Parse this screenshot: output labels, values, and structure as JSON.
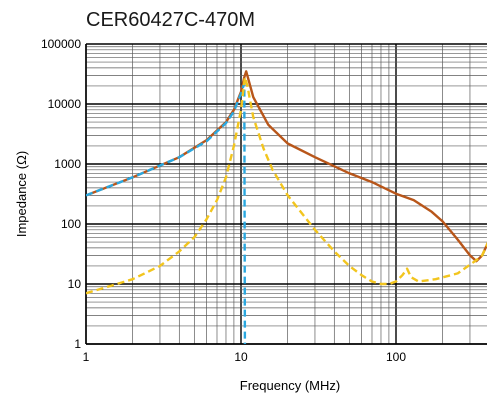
{
  "chart_data": {
    "type": "line",
    "title": "CER60427C-470M",
    "xlabel": "Frequency (MHz)",
    "ylabel": "Impedance (Ω)",
    "x_scale": "log",
    "y_scale": "log",
    "xlim": [
      1,
      400
    ],
    "ylim": [
      1,
      100000
    ],
    "x_ticks": [
      1,
      10,
      100
    ],
    "x_tick_labels": [
      "1",
      "10",
      "100"
    ],
    "y_ticks": [
      1,
      10,
      100,
      1000,
      10000,
      100000
    ],
    "y_tick_labels": [
      "1",
      "10",
      "100",
      "1000",
      "10000",
      "100000"
    ],
    "grid": true,
    "series": [
      {
        "color": "#b8561a",
        "style": "solid",
        "points": [
          [
            1,
            300
          ],
          [
            2,
            600
          ],
          [
            4,
            1300
          ],
          [
            6,
            2500
          ],
          [
            8,
            5000
          ],
          [
            9,
            8000
          ],
          [
            10,
            16000
          ],
          [
            10.5,
            28000
          ],
          [
            10.8,
            35000
          ],
          [
            11.2,
            25000
          ],
          [
            12,
            13000
          ],
          [
            15,
            4500
          ],
          [
            20,
            2200
          ],
          [
            30,
            1300
          ],
          [
            50,
            700
          ],
          [
            70,
            500
          ],
          [
            100,
            320
          ],
          [
            130,
            250
          ],
          [
            170,
            160
          ],
          [
            200,
            110
          ],
          [
            250,
            55
          ],
          [
            300,
            30
          ],
          [
            330,
            24
          ],
          [
            360,
            30
          ],
          [
            400,
            55
          ]
        ]
      },
      {
        "color": "#2aa8e0",
        "style": "dashed",
        "points": [
          [
            1,
            300
          ],
          [
            2,
            600
          ],
          [
            4,
            1300
          ],
          [
            6,
            2400
          ],
          [
            8,
            4800
          ],
          [
            9,
            7500
          ],
          [
            10,
            15000
          ],
          [
            10.5,
            22000
          ],
          [
            10.6,
            1
          ]
        ]
      },
      {
        "color": "#f2c51e",
        "style": "dashed",
        "points": [
          [
            1,
            7
          ],
          [
            2,
            12
          ],
          [
            3,
            20
          ],
          [
            4,
            35
          ],
          [
            5,
            60
          ],
          [
            6,
            120
          ],
          [
            7,
            250
          ],
          [
            8,
            600
          ],
          [
            9,
            2000
          ],
          [
            10,
            8000
          ],
          [
            10.6,
            28000
          ],
          [
            11,
            20000
          ],
          [
            12,
            6000
          ],
          [
            14,
            1800
          ],
          [
            16,
            800
          ],
          [
            20,
            300
          ],
          [
            30,
            80
          ],
          [
            40,
            35
          ],
          [
            50,
            20
          ],
          [
            60,
            14
          ],
          [
            70,
            11
          ],
          [
            80,
            10
          ],
          [
            90,
            10
          ],
          [
            100,
            11
          ],
          [
            110,
            14
          ],
          [
            118,
            18
          ],
          [
            125,
            13
          ],
          [
            140,
            11
          ],
          [
            180,
            12
          ],
          [
            250,
            15
          ],
          [
            330,
            25
          ],
          [
            360,
            30
          ],
          [
            400,
            55
          ]
        ]
      }
    ]
  }
}
